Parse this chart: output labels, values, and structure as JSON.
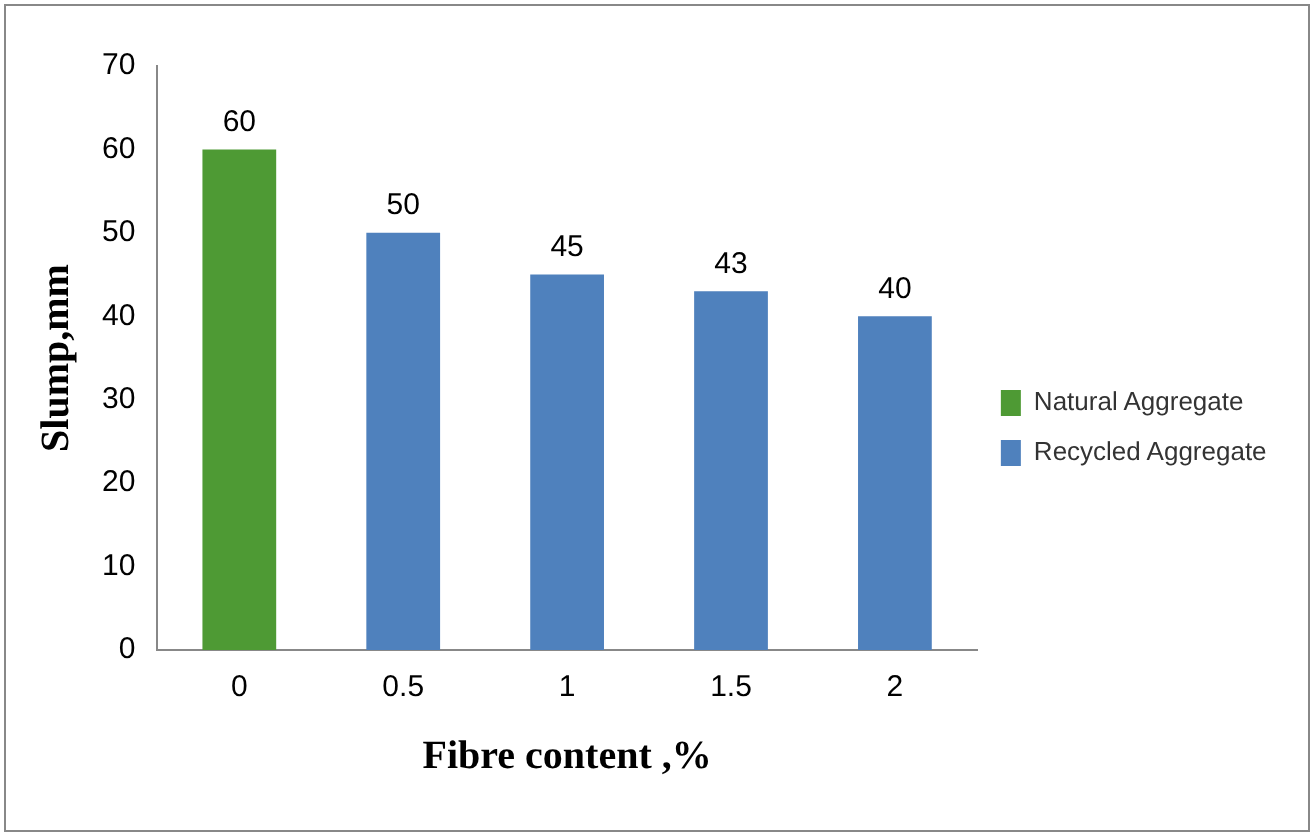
{
  "chart_data": {
    "type": "bar",
    "xlabel": "Fibre content ,%",
    "ylabel": "Slump,mm",
    "categories": [
      "0",
      "0.5",
      "1",
      "1.5",
      "2"
    ],
    "series": [
      {
        "name": "Natural Aggregate",
        "color": "#4e9a34",
        "values": [
          60,
          null,
          null,
          null,
          null
        ]
      },
      {
        "name": "Recycled Aggregate",
        "color": "#4f81bd",
        "values": [
          null,
          50,
          45,
          43,
          40
        ]
      }
    ],
    "ylim": [
      0,
      70
    ],
    "yticks": [
      0,
      10,
      20,
      30,
      40,
      50,
      60,
      70
    ],
    "grid": false,
    "legend": "right",
    "data_labels": true
  }
}
